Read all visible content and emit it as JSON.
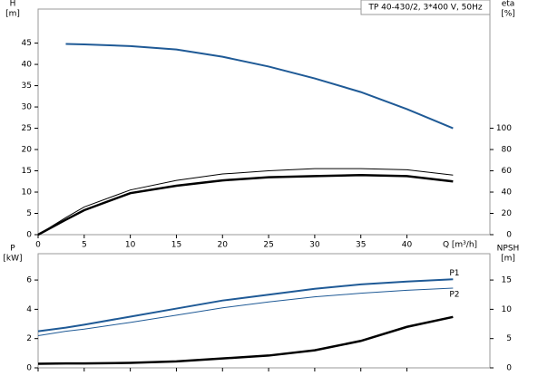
{
  "chart_data": [
    {
      "type": "line",
      "title": "TP 40-430/2, 3*400 V, 50Hz",
      "x_label": "Q [m³/h]",
      "y_label": [
        "H",
        "[m]"
      ],
      "y2_label": [
        "eta",
        "[%]"
      ],
      "x": [
        0,
        3,
        5,
        10,
        15,
        20,
        25,
        30,
        35,
        40,
        45
      ],
      "xlim": [
        0,
        49
      ],
      "xticks": [
        0,
        5,
        10,
        15,
        20,
        25,
        30,
        35,
        40
      ],
      "ylim": [
        0,
        53
      ],
      "yticks": [
        0,
        5,
        10,
        15,
        20,
        25,
        30,
        35,
        40,
        45
      ],
      "y2lim": [
        0,
        212
      ],
      "y2ticks": [
        0,
        20,
        40,
        60,
        80,
        100
      ],
      "series": [
        {
          "color": "#1f5a96",
          "line_width": 2,
          "values": [
            null,
            44.8,
            44.7,
            44.3,
            43.5,
            41.8,
            39.5,
            36.7,
            33.5,
            29.5,
            25
          ]
        },
        {
          "color": "#000000",
          "line_width": 1,
          "axis": "y2",
          "values": [
            0,
            16,
            26,
            42,
            51,
            57,
            60,
            62,
            62,
            61,
            56
          ]
        },
        {
          "color": "#000000",
          "line_width": 2.5,
          "axis": "y2",
          "values": [
            0,
            14,
            23,
            39,
            46,
            51,
            54,
            55,
            56,
            55,
            50
          ]
        }
      ]
    },
    {
      "type": "line",
      "y_label": [
        "P",
        "[kW]"
      ],
      "y2_label": [
        "NPSH",
        "[m]"
      ],
      "x": [
        0,
        3,
        5,
        10,
        15,
        20,
        25,
        30,
        35,
        40,
        45
      ],
      "xlim": [
        0,
        49
      ],
      "xticks": [
        0,
        5,
        10,
        15,
        20,
        25,
        30,
        35,
        40
      ],
      "ylim": [
        0,
        7.8
      ],
      "yticks": [
        0,
        2,
        4,
        6
      ],
      "y2lim": [
        0,
        19.5
      ],
      "y2ticks": [
        0,
        5,
        10,
        15
      ],
      "series": [
        {
          "name": "P1",
          "color": "#1f5a96",
          "line_width": 2,
          "values": [
            2.5,
            2.75,
            2.95,
            3.5,
            4.05,
            4.6,
            5.0,
            5.4,
            5.7,
            5.9,
            6.05
          ]
        },
        {
          "name": "P2",
          "color": "#1f5a96",
          "line_width": 1,
          "values": [
            2.2,
            2.5,
            2.65,
            3.1,
            3.6,
            4.1,
            4.5,
            4.85,
            5.1,
            5.3,
            5.45
          ]
        },
        {
          "color": "#000000",
          "line_width": 2.5,
          "axis": "y2",
          "values": [
            0.7,
            0.75,
            0.75,
            0.85,
            1.1,
            1.6,
            2.1,
            3.0,
            4.6,
            7.0,
            8.7
          ]
        }
      ]
    }
  ]
}
